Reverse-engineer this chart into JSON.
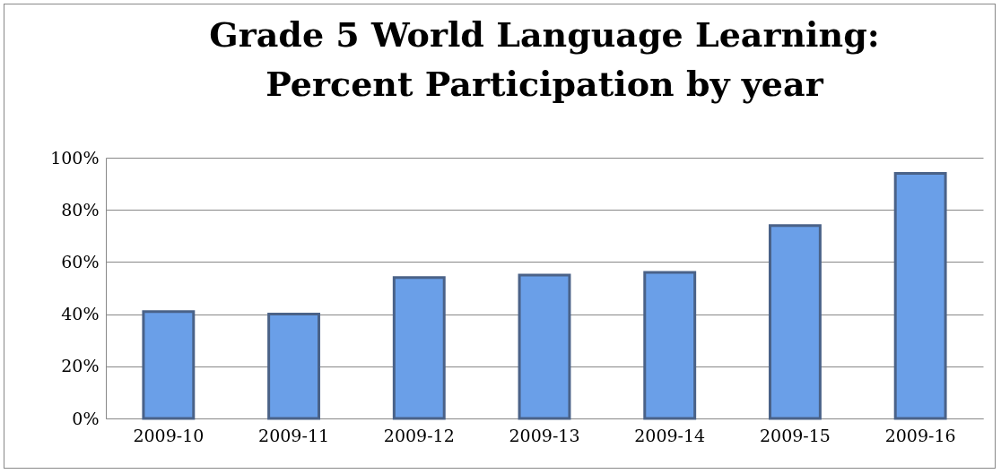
{
  "chart_data": {
    "type": "bar",
    "title": "Grade 5 World Language Learning:\nPercent Participation by year",
    "categories": [
      "2009-10",
      "2009-11",
      "2009-12",
      "2009-13",
      "2009-14",
      "2009-15",
      "2009-16"
    ],
    "values": [
      41,
      40,
      54,
      55,
      56,
      74,
      94
    ],
    "color": "#6a9fe8",
    "ylim": [
      0,
      100
    ],
    "yticks": [
      {
        "value": 0,
        "label": "0%"
      },
      {
        "value": 20,
        "label": "20%"
      },
      {
        "value": 40,
        "label": "40%"
      },
      {
        "value": 60,
        "label": "60%"
      },
      {
        "value": 80,
        "label": "80%"
      },
      {
        "value": 100,
        "label": "100%"
      }
    ],
    "grid": "y"
  }
}
